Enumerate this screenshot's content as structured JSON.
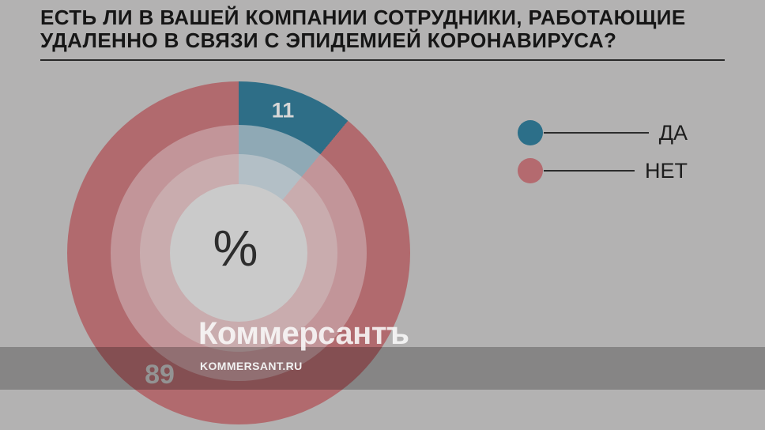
{
  "title": {
    "line1": "ЕСТЬ ЛИ В ВАШЕЙ КОМПАНИИ СОТРУДНИКИ, РАБОТАЮЩИЕ",
    "line2": "УДАЛЕННО В СВЯЗИ С ЭПИДЕМИЕЙ КОРОНАВИРУСА?"
  },
  "chart_data": {
    "type": "pie",
    "title": "ЕСТЬ ЛИ В ВАШЕЙ КОМПАНИИ СОТРУДНИКИ, РАБОТАЮЩИЕ УДАЛЕННО В СВЯЗИ С ЭПИДЕМИЕЙ КОРОНАВИРУСА?",
    "unit": "%",
    "center_label": "%",
    "start_angle_deg": 0,
    "legend_position": "right",
    "segments": [
      {
        "label": "ДА",
        "value": 11,
        "color": "#2e6e87"
      },
      {
        "label": "НЕТ",
        "value": 89,
        "color": "#b16a6e"
      }
    ],
    "rings": [
      {
        "colors": [
          "#2e6e87",
          "#b16a6e"
        ]
      },
      {
        "colors": [
          "#8fa9b5",
          "#c29599"
        ]
      },
      {
        "colors": [
          "#b3bfc6",
          "#c9acae"
        ]
      }
    ]
  },
  "legend": {
    "items": [
      {
        "label": "ДА",
        "color": "#2c6f89"
      },
      {
        "label": "НЕТ",
        "color": "#b46a6f"
      }
    ]
  },
  "watermark": {
    "logo": "Коммерсантъ",
    "url": "KOMMERSANT.RU"
  },
  "colors": {
    "background": "#b3b2b2",
    "center_circle": "#cacaca",
    "title_text": "#161616",
    "band_overlay": "rgba(0,0,0,0.25)"
  }
}
